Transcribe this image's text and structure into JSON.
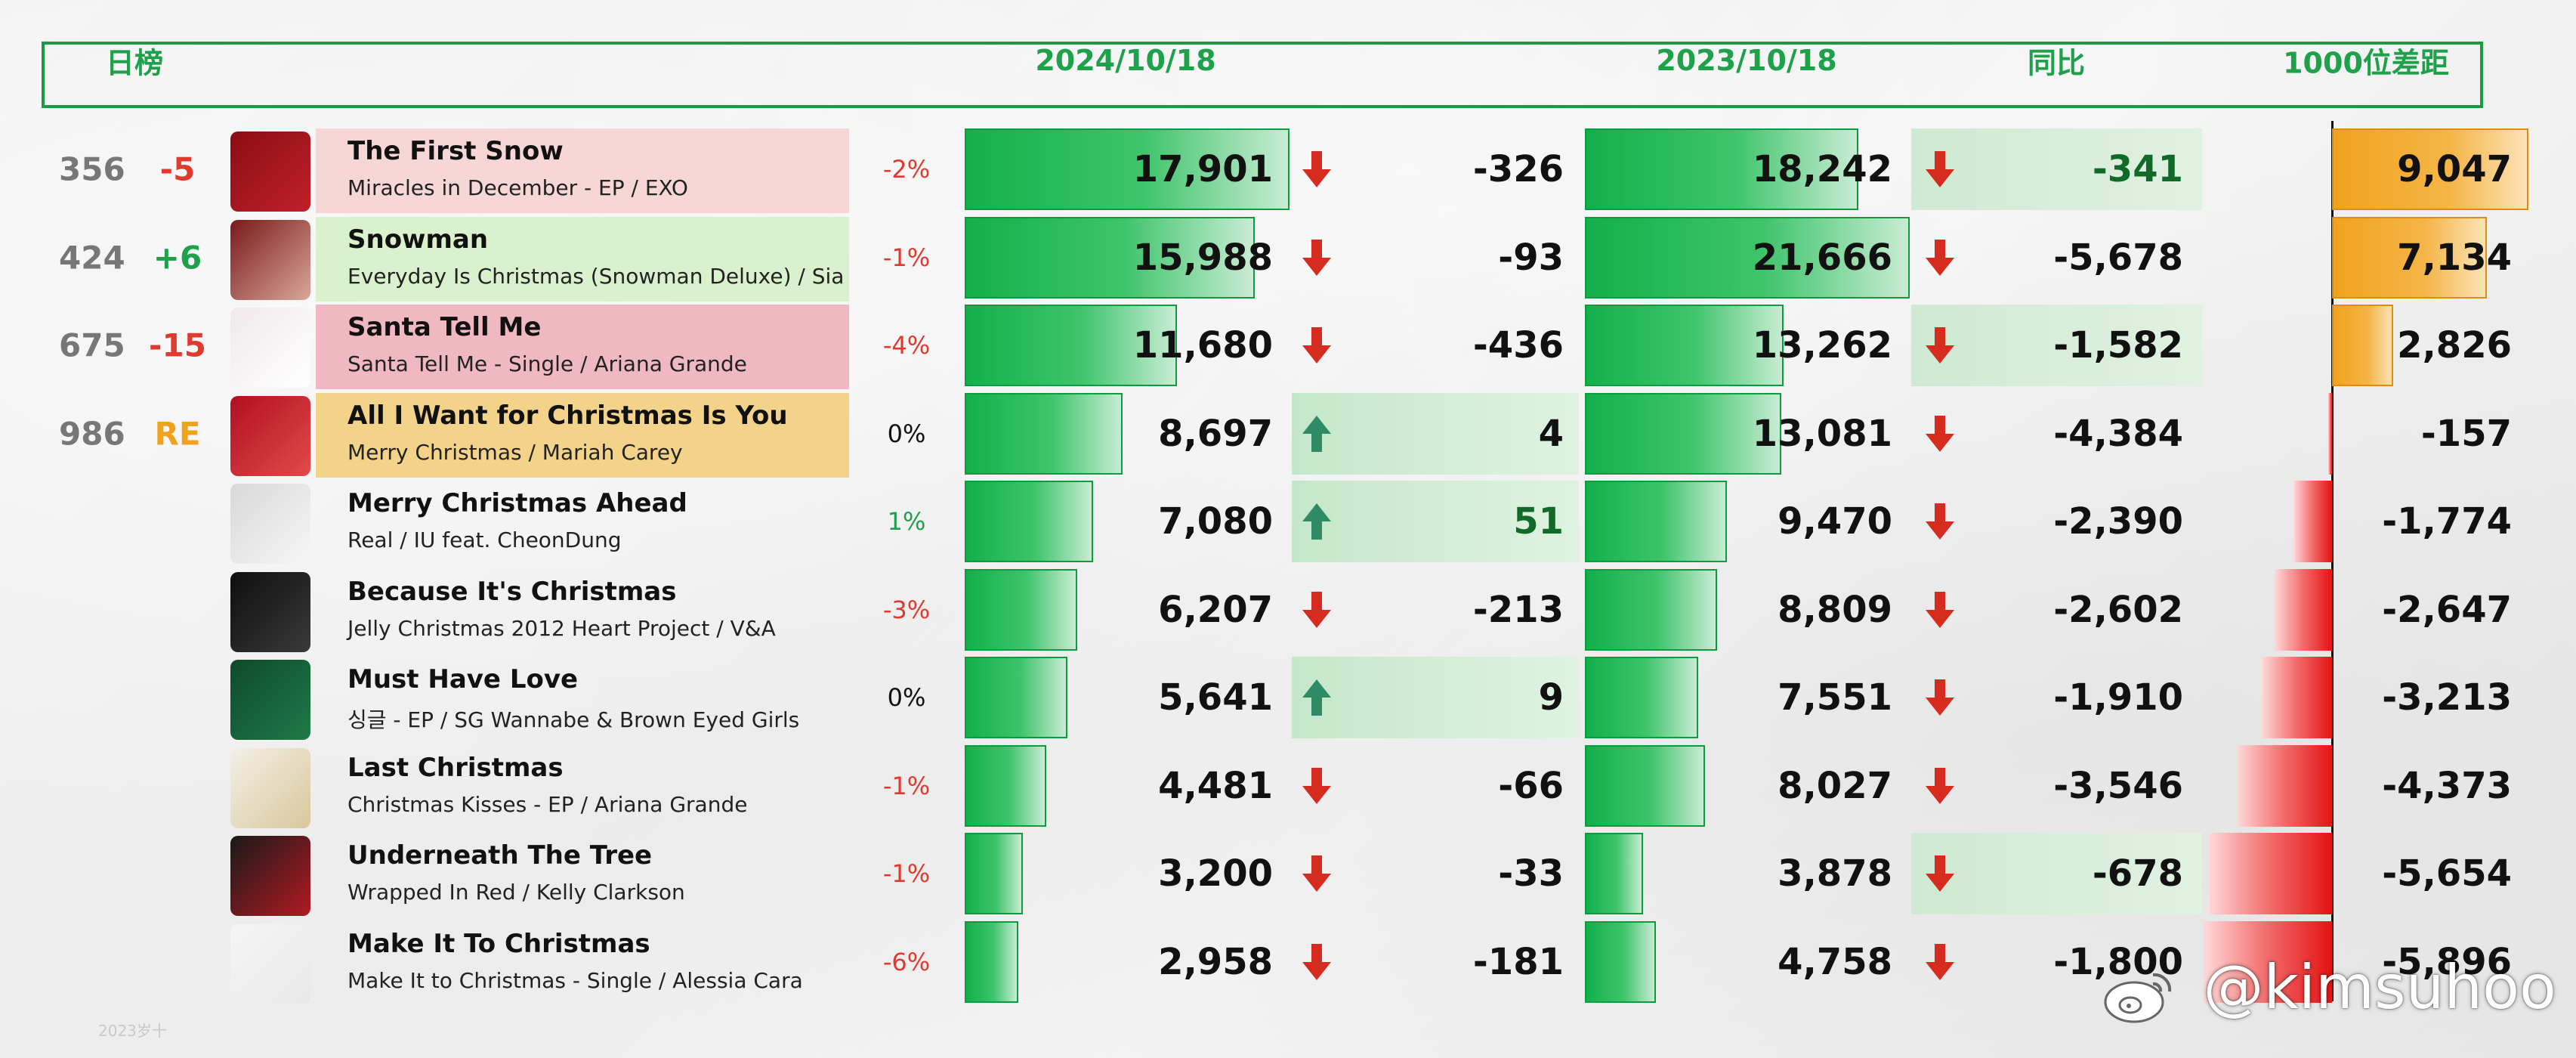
{
  "header": {
    "daily_label": "日榜",
    "date_current": "2024/10/18",
    "date_previous": "2023/10/18",
    "yoy_label": "同比",
    "gap_label": "1000位差距"
  },
  "rows": [
    {
      "rank": "356",
      "change": "-5",
      "title": "The First Snow",
      "subtitle": "Miracles in December - EP / EXO",
      "pct": "-2%",
      "current": "17,901",
      "daily_delta": "-326",
      "previous": "18,242",
      "yoy": "-341",
      "gap": "9,047",
      "current_value": 17901,
      "previous_value": 18242,
      "gap_value": 9047
    },
    {
      "rank": "424",
      "change": "+6",
      "title": "Snowman",
      "subtitle": "Everyday Is Christmas (Snowman Deluxe) / Sia",
      "pct": "-1%",
      "current": "15,988",
      "daily_delta": "-93",
      "previous": "21,666",
      "yoy": "-5,678",
      "gap": "7,134",
      "current_value": 15988,
      "previous_value": 21666,
      "gap_value": 7134
    },
    {
      "rank": "675",
      "change": "-15",
      "title": "Santa Tell Me",
      "subtitle": "Santa Tell Me - Single / Ariana Grande",
      "pct": "-4%",
      "current": "11,680",
      "daily_delta": "-436",
      "previous": "13,262",
      "yoy": "-1,582",
      "gap": "2,826",
      "current_value": 11680,
      "previous_value": 13262,
      "gap_value": 2826
    },
    {
      "rank": "986",
      "change": "RE",
      "title": "All I Want for Christmas Is You",
      "subtitle": "Merry Christmas / Mariah Carey",
      "pct": "0%",
      "current": "8,697",
      "daily_delta": "4",
      "previous": "13,081",
      "yoy": "-4,384",
      "gap": "-157",
      "current_value": 8697,
      "previous_value": 13081,
      "gap_value": -157
    },
    {
      "rank": "",
      "change": "",
      "title": "Merry Christmas Ahead",
      "subtitle": "Real / IU feat. CheonDung",
      "pct": "1%",
      "current": "7,080",
      "daily_delta": "51",
      "previous": "9,470",
      "yoy": "-2,390",
      "gap": "-1,774",
      "current_value": 7080,
      "previous_value": 9470,
      "gap_value": -1774
    },
    {
      "rank": "",
      "change": "",
      "title": "Because It's Christmas",
      "subtitle": "Jelly Christmas 2012 Heart Project  / V&A",
      "pct": "-3%",
      "current": "6,207",
      "daily_delta": "-213",
      "previous": "8,809",
      "yoy": "-2,602",
      "gap": "-2,647",
      "current_value": 6207,
      "previous_value": 8809,
      "gap_value": -2647
    },
    {
      "rank": "",
      "change": "",
      "title": "Must Have Love",
      "subtitle": "싱글 - EP / SG Wannabe & Brown Eyed Girls",
      "pct": "0%",
      "current": "5,641",
      "daily_delta": "9",
      "previous": "7,551",
      "yoy": "-1,910",
      "gap": "-3,213",
      "current_value": 5641,
      "previous_value": 7551,
      "gap_value": -3213
    },
    {
      "rank": "",
      "change": "",
      "title": "Last Christmas",
      "subtitle": "Christmas Kisses - EP / Ariana Grande",
      "pct": "-1%",
      "current": "4,481",
      "daily_delta": "-66",
      "previous": "8,027",
      "yoy": "-3,546",
      "gap": "-4,373",
      "current_value": 4481,
      "previous_value": 8027,
      "gap_value": -4373
    },
    {
      "rank": "",
      "change": "",
      "title": "Underneath The Tree",
      "subtitle": "Wrapped In Red / Kelly Clarkson",
      "pct": "-1%",
      "current": "3,200",
      "daily_delta": "-33",
      "previous": "3,878",
      "yoy": "-678",
      "gap": "-5,654",
      "current_value": 3200,
      "previous_value": 3878,
      "gap_value": -5654
    },
    {
      "rank": "",
      "change": "",
      "title": "Make It To Christmas",
      "subtitle": "Make It to Christmas - Single / Alessia Cara",
      "pct": "-6%",
      "current": "2,958",
      "daily_delta": "-181",
      "previous": "4,758",
      "yoy": "-1,800",
      "gap": "-5,896",
      "current_value": 2958,
      "previous_value": 4758,
      "gap_value": -5896
    }
  ],
  "watermark": "@kimsuhoo",
  "footnote": "2023岁十",
  "colors": {
    "accent_green": "#1a9a42",
    "down_red": "#d62b1f",
    "up_teal": "#2f8a66",
    "change_negative": "#e03a2f",
    "change_positive": "#1fa04a",
    "change_re": "#f0a21e",
    "label_bg": [
      "#f7d6d6",
      "#d9f2cd",
      "#f0b8c0",
      "#f3d38a"
    ]
  }
}
